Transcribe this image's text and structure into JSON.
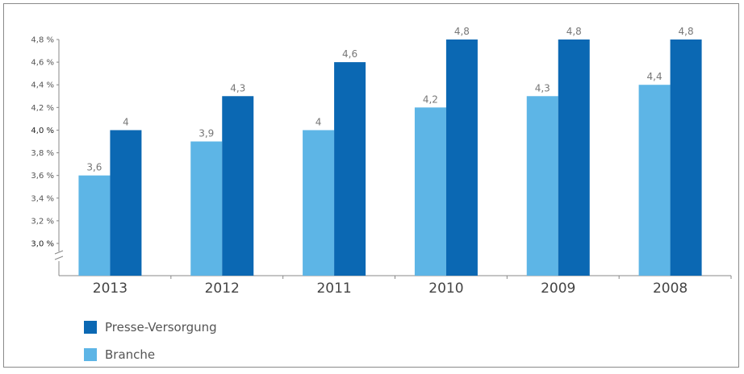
{
  "chart_data": {
    "type": "bar",
    "categories": [
      "2013",
      "2012",
      "2011",
      "2010",
      "2009",
      "2008"
    ],
    "series": [
      {
        "name": "Branche",
        "color": "#5db5e6",
        "values": [
          3.6,
          3.9,
          4.0,
          4.2,
          4.3,
          4.4
        ],
        "labels": [
          "3,6",
          "3,9",
          "4",
          "4,2",
          "4,3",
          "4,4"
        ]
      },
      {
        "name": "Presse-Versorgung",
        "color": "#0b68b3",
        "values": [
          4.0,
          4.3,
          4.6,
          4.8,
          4.8,
          4.8
        ],
        "labels": [
          "4",
          "4,3",
          "4,6",
          "4,8",
          "4,8",
          "4,8"
        ]
      }
    ],
    "yticks": [
      "3,0 %",
      "3,2 %",
      "3,4 %",
      "3,6 %",
      "3,8 %",
      "4,0 %",
      "4,2 %",
      "4,4 %",
      "4,6 %",
      "4,8 %"
    ],
    "ylim": [
      3.0,
      4.8
    ],
    "axis_break": true,
    "grid": false,
    "legend_position": "bottom-left",
    "title": "",
    "xlabel": "",
    "ylabel": ""
  },
  "legend": {
    "items": [
      {
        "label": "Presse-Versorgung",
        "color": "#0b68b3"
      },
      {
        "label": "Branche",
        "color": "#5db5e6"
      }
    ]
  }
}
